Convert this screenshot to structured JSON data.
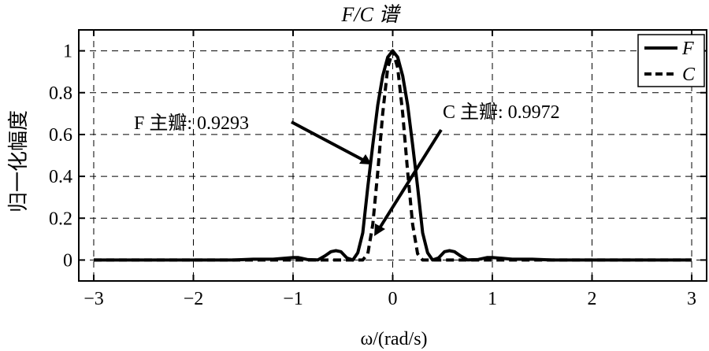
{
  "chart_data": {
    "type": "line",
    "title": "F/C  谱",
    "xlabel": "ω/(rad/s)",
    "ylabel": "归一化幅度",
    "xlim": [
      -3.15,
      3.15
    ],
    "ylim": [
      -0.1,
      1.1
    ],
    "xticks": [
      -3,
      -2,
      -1,
      0,
      1,
      2,
      3
    ],
    "xtick_labels": [
      "−3",
      "−2",
      "−1",
      "0",
      "1",
      "2",
      "3"
    ],
    "yticks": [
      0,
      0.2,
      0.4,
      0.6,
      0.8,
      1
    ],
    "ytick_labels": [
      "0",
      "0.2",
      "0.4",
      "0.6",
      "0.8",
      "1"
    ],
    "grid": true,
    "legend_position": "top-right",
    "series": [
      {
        "name": "F",
        "style": "solid",
        "color": "#000000",
        "x": [
          -3.0,
          -2.5,
          -2.0,
          -1.6,
          -1.4,
          -1.2,
          -1.0,
          -0.95,
          -0.85,
          -0.75,
          -0.68,
          -0.62,
          -0.57,
          -0.52,
          -0.46,
          -0.4,
          -0.35,
          -0.3,
          -0.25,
          -0.2,
          -0.15,
          -0.1,
          -0.05,
          0.0,
          0.05,
          0.1,
          0.15,
          0.2,
          0.25,
          0.3,
          0.35,
          0.4,
          0.46,
          0.52,
          0.57,
          0.62,
          0.68,
          0.75,
          0.85,
          0.95,
          1.0,
          1.2,
          1.4,
          1.6,
          2.0,
          2.5,
          3.0
        ],
        "y": [
          0.0,
          0.0,
          0.0,
          0.0,
          0.004,
          0.004,
          0.012,
          0.012,
          0.002,
          0.001,
          0.02,
          0.04,
          0.045,
          0.04,
          0.01,
          0.0,
          0.035,
          0.13,
          0.35,
          0.55,
          0.74,
          0.88,
          0.97,
          1.0,
          0.97,
          0.88,
          0.74,
          0.55,
          0.35,
          0.13,
          0.035,
          0.0,
          0.01,
          0.04,
          0.045,
          0.04,
          0.02,
          0.001,
          0.002,
          0.012,
          0.012,
          0.004,
          0.004,
          0.0,
          0.0,
          0.0,
          0.0
        ]
      },
      {
        "name": "C",
        "style": "dashed",
        "color": "#000000",
        "x": [
          -3.0,
          -2.0,
          -1.0,
          -0.5,
          -0.3,
          -0.25,
          -0.2,
          -0.15,
          -0.1,
          -0.05,
          0.0,
          0.05,
          0.1,
          0.15,
          0.2,
          0.25,
          0.3,
          0.5,
          1.0,
          2.0,
          3.0
        ],
        "y": [
          0.0,
          0.0,
          0.0,
          0.0,
          0.0,
          0.03,
          0.17,
          0.42,
          0.7,
          0.92,
          1.0,
          0.92,
          0.7,
          0.42,
          0.17,
          0.03,
          0.0,
          0.0,
          0.0,
          0.0,
          0.0
        ]
      }
    ],
    "annotations": [
      {
        "text": "F 主瓣: 0.9293",
        "points_to": [
          -0.23,
          0.46
        ]
      },
      {
        "text": "C 主瓣: 0.9972",
        "points_to": [
          -0.2,
          0.12
        ]
      }
    ]
  }
}
